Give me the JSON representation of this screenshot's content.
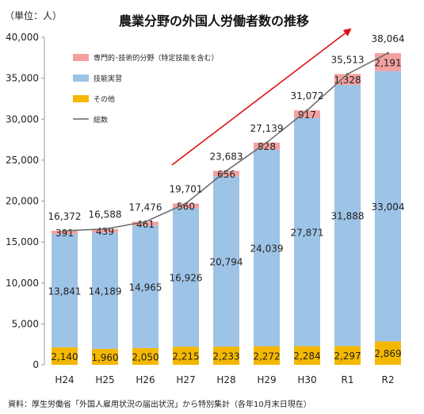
{
  "chart_data": {
    "type": "bar",
    "stacked": true,
    "title": "農業分野の外国人労働者数の推移",
    "unit_label": "（単位：人）",
    "source_note": "資料：厚生労働省「外国人雇用状況の届出状況」から特別集計（各年10月末日現在）",
    "categories": [
      "H24",
      "H25",
      "H26",
      "H27",
      "H28",
      "H29",
      "H30",
      "R1",
      "R2"
    ],
    "series": [
      {
        "name": "その他",
        "color": "#F5B800",
        "values": [
          2140,
          1960,
          2050,
          2215,
          2233,
          2272,
          2284,
          2297,
          2869
        ],
        "labels": [
          "2,140",
          "1,960",
          "2,050",
          "2,215",
          "2,233",
          "2,272",
          "2,284",
          "2,297",
          "2,869"
        ]
      },
      {
        "name": "技能実習",
        "color": "#9DC3E6",
        "values": [
          13841,
          14189,
          14965,
          16926,
          20794,
          24039,
          27871,
          31888,
          33004
        ],
        "labels": [
          "13,841",
          "14,189",
          "14,965",
          "16,926",
          "20,794",
          "24,039",
          "27,871",
          "31,888",
          "33,004"
        ]
      },
      {
        "name": "専門的･技術的分野（特定技能を含む）",
        "color": "#F4A0A0",
        "values": [
          391,
          439,
          461,
          560,
          656,
          828,
          917,
          1328,
          2191
        ],
        "labels": [
          "391",
          "439",
          "461",
          "560",
          "656",
          "828",
          "917",
          "1,328",
          "2,191"
        ]
      }
    ],
    "total": {
      "name": "総数",
      "color": "#666666",
      "values": [
        16372,
        16588,
        17476,
        19701,
        23683,
        27139,
        31072,
        35513,
        38064
      ],
      "labels": [
        "16,372",
        "16,588",
        "17,476",
        "19,701",
        "23,683",
        "27,139",
        "31,072",
        "35,513",
        "38,064"
      ]
    },
    "legend_order": [
      2,
      1,
      0
    ],
    "ylim": [
      0,
      40000
    ],
    "yticks": [
      0,
      5000,
      10000,
      15000,
      20000,
      25000,
      30000,
      35000,
      40000
    ],
    "ytick_labels": [
      "0",
      "5,000",
      "10,000",
      "15,000",
      "20,000",
      "25,000",
      "30,000",
      "35,000",
      "40,000"
    ],
    "trend_arrow_color": "#E01010",
    "legend_position": "top-left",
    "grid": false
  }
}
